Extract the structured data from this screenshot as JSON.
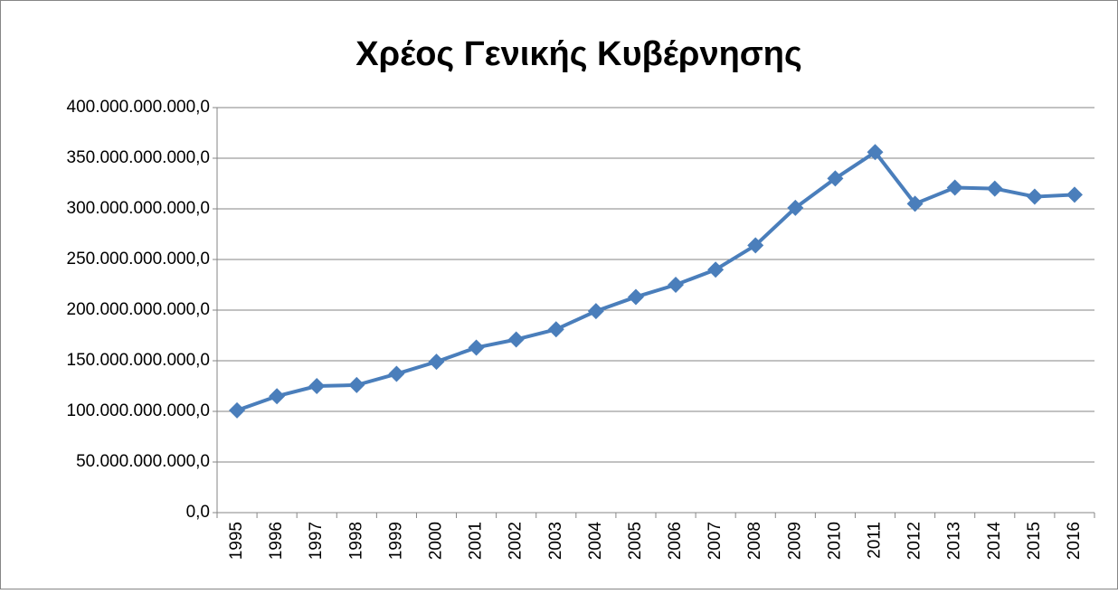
{
  "chart_data": {
    "type": "line",
    "title": "Χρέος Γενικής Κυβέρνησης",
    "categories": [
      "1995",
      "1996",
      "1997",
      "1998",
      "1999",
      "2000",
      "2001",
      "2002",
      "2003",
      "2004",
      "2005",
      "2006",
      "2007",
      "2008",
      "2009",
      "2010",
      "2011",
      "2012",
      "2013",
      "2014",
      "2015",
      "2016"
    ],
    "series": [
      {
        "name": "Χρέος Γενικής Κυβέρνησης",
        "color": "#4a7ebb",
        "values": [
          101000000000,
          115000000000,
          125000000000,
          126000000000,
          137000000000,
          149000000000,
          163000000000,
          171000000000,
          181000000000,
          199000000000,
          213000000000,
          225000000000,
          240000000000,
          264000000000,
          301000000000,
          330000000000,
          356000000000,
          305000000000,
          321000000000,
          320000000000,
          312000000000,
          314000000000
        ]
      }
    ],
    "ylim": [
      0,
      400000000000
    ],
    "yticks": [
      {
        "value": 0,
        "label": "0,0"
      },
      {
        "value": 50000000000,
        "label": "50.000.000.000,0"
      },
      {
        "value": 100000000000,
        "label": "100.000.000.000,0"
      },
      {
        "value": 150000000000,
        "label": "150.000.000.000,0"
      },
      {
        "value": 200000000000,
        "label": "200.000.000.000,0"
      },
      {
        "value": 250000000000,
        "label": "250.000.000.000,0"
      },
      {
        "value": 300000000000,
        "label": "300.000.000.000,0"
      },
      {
        "value": 350000000000,
        "label": "350.000.000.000,0"
      },
      {
        "value": 400000000000,
        "label": "400.000.000.000,0"
      }
    ],
    "grid": true
  }
}
